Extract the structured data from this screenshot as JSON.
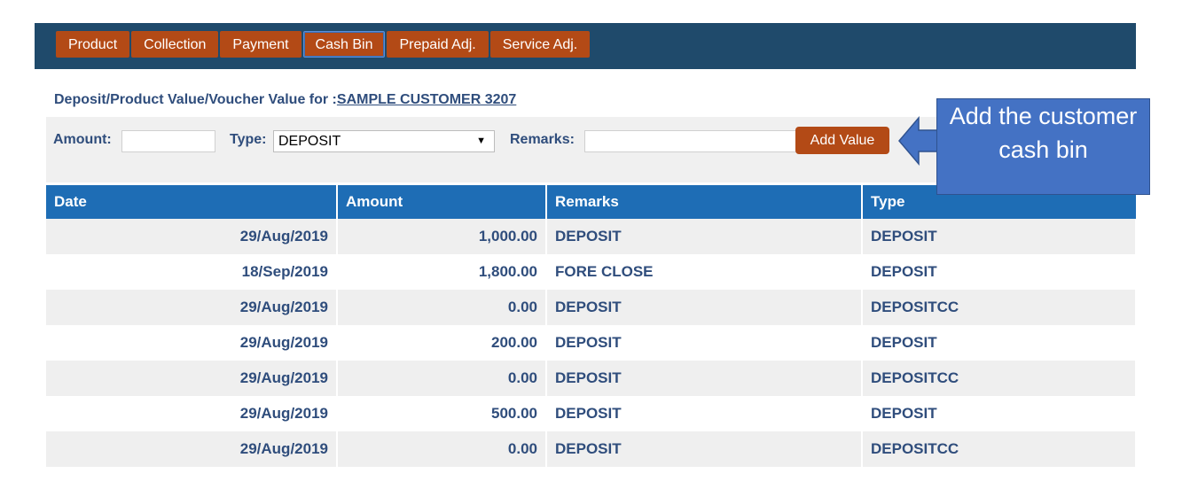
{
  "tabs": [
    {
      "label": "Product"
    },
    {
      "label": "Collection"
    },
    {
      "label": "Payment"
    },
    {
      "label": "Cash Bin",
      "active": true
    },
    {
      "label": "Prepaid Adj."
    },
    {
      "label": "Service Adj."
    }
  ],
  "header": {
    "title_prefix": "Deposit/Product Value/Voucher Value for :",
    "customer_name": "SAMPLE CUSTOMER 3207"
  },
  "form": {
    "amount_label": "Amount:",
    "amount_value": "",
    "type_label": "Type:",
    "type_value": "DEPOSIT",
    "remarks_label": "Remarks:",
    "remarks_value": "",
    "add_button_label": "Add Value"
  },
  "table": {
    "columns": [
      "Date",
      "Amount",
      "Remarks",
      "Type"
    ],
    "rows": [
      {
        "date": "29/Aug/2019",
        "amount": "1,000.00",
        "remarks": "DEPOSIT",
        "type": "DEPOSIT"
      },
      {
        "date": "18/Sep/2019",
        "amount": "1,800.00",
        "remarks": "FORE CLOSE",
        "type": "DEPOSIT"
      },
      {
        "date": "29/Aug/2019",
        "amount": "0.00",
        "remarks": "DEPOSIT",
        "type": "DEPOSITCC"
      },
      {
        "date": "29/Aug/2019",
        "amount": "200.00",
        "remarks": "DEPOSIT",
        "type": "DEPOSIT"
      },
      {
        "date": "29/Aug/2019",
        "amount": "0.00",
        "remarks": "DEPOSIT",
        "type": "DEPOSITCC"
      },
      {
        "date": "29/Aug/2019",
        "amount": "500.00",
        "remarks": "DEPOSIT",
        "type": "DEPOSIT"
      },
      {
        "date": "29/Aug/2019",
        "amount": "0.00",
        "remarks": "DEPOSIT",
        "type": "DEPOSITCC"
      }
    ]
  },
  "annotation": {
    "text": "Add the customer cash bin",
    "color": "#4472c4"
  },
  "colors": {
    "nav_bar": "#1f4a6b",
    "button": "#b34a16",
    "table_header": "#1e6db5",
    "text": "#2f4d7c"
  }
}
